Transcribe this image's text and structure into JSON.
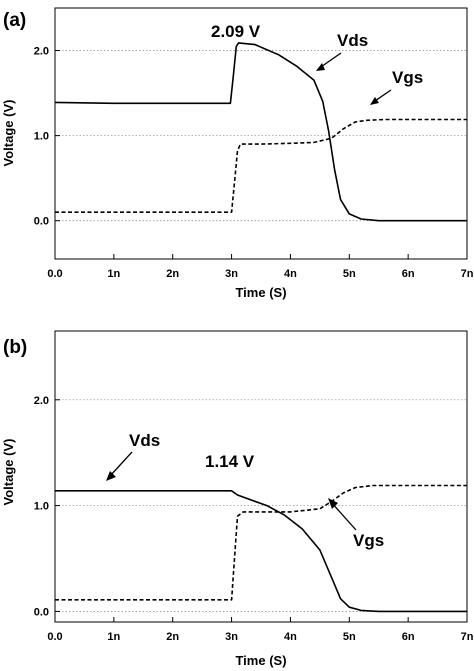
{
  "chart_data": [
    {
      "panel_label": "(a)",
      "type": "line",
      "xlabel": "Time (S)",
      "ylabel": "Voltage (V)",
      "xlim": [
        0,
        7
      ],
      "ylim": [
        -0.45,
        2.5
      ],
      "x_unit_suffix": "n",
      "x_ticks": [
        {
          "value": 0,
          "label": "0.0"
        },
        {
          "value": 1,
          "label": "1n"
        },
        {
          "value": 2,
          "label": "2n"
        },
        {
          "value": 3,
          "label": "3n"
        },
        {
          "value": 4,
          "label": "4n"
        },
        {
          "value": 5,
          "label": "5n"
        },
        {
          "value": 6,
          "label": "6n"
        },
        {
          "value": 7,
          "label": "7n"
        }
      ],
      "y_ticks": [
        {
          "value": 0,
          "label": "0.0"
        },
        {
          "value": 1,
          "label": "1.0"
        },
        {
          "value": 2,
          "label": "2.0"
        }
      ],
      "grid": "horizontal-dotted",
      "series": [
        {
          "name": "Vds",
          "style": "solid",
          "x": [
            0,
            1,
            2,
            2.98,
            3.03,
            3.08,
            3.12,
            3.4,
            3.8,
            4.1,
            4.4,
            4.55,
            4.65,
            4.75,
            4.85,
            5.0,
            5.2,
            5.5,
            6,
            7
          ],
          "y": [
            1.39,
            1.38,
            1.38,
            1.38,
            1.7,
            2.05,
            2.09,
            2.07,
            1.95,
            1.82,
            1.65,
            1.4,
            1.05,
            0.6,
            0.25,
            0.08,
            0.02,
            0.0,
            0.0,
            0.0
          ]
        },
        {
          "name": "Vgs",
          "style": "dashed",
          "x": [
            0,
            1,
            2,
            3.0,
            3.05,
            3.1,
            3.15,
            3.5,
            4,
            4.4,
            4.7,
            4.9,
            5.1,
            5.3,
            5.6,
            6,
            7
          ],
          "y": [
            0.1,
            0.1,
            0.1,
            0.1,
            0.45,
            0.82,
            0.9,
            0.9,
            0.91,
            0.92,
            0.97,
            1.08,
            1.16,
            1.18,
            1.19,
            1.19,
            1.19
          ]
        }
      ],
      "annotations": [
        {
          "text": "2.09 V",
          "x": 3.12,
          "y": 2.09,
          "arrow": false
        },
        {
          "text": "Vds",
          "x": 4.4,
          "y": 1.65,
          "arrow": true
        },
        {
          "text": "Vgs",
          "x": 4.95,
          "y": 1.2,
          "arrow": true
        }
      ]
    },
    {
      "panel_label": "(b)",
      "type": "line",
      "xlabel": "Time (S)",
      "ylabel": "Voltage (V)",
      "xlim": [
        0,
        7
      ],
      "ylim": [
        -0.1,
        2.65
      ],
      "x_unit_suffix": "n",
      "x_ticks": [
        {
          "value": 0,
          "label": "0.0"
        },
        {
          "value": 1,
          "label": "1n"
        },
        {
          "value": 2,
          "label": "2n"
        },
        {
          "value": 3,
          "label": "3n"
        },
        {
          "value": 4,
          "label": "4n"
        },
        {
          "value": 5,
          "label": "5n"
        },
        {
          "value": 6,
          "label": "6n"
        },
        {
          "value": 7,
          "label": "7n"
        }
      ],
      "y_ticks": [
        {
          "value": 0,
          "label": "0.0"
        },
        {
          "value": 1,
          "label": "1.0"
        },
        {
          "value": 2,
          "label": "2.0"
        }
      ],
      "grid": "horizontal-dotted",
      "series": [
        {
          "name": "Vds",
          "style": "solid",
          "x": [
            0,
            1,
            2,
            3.0,
            3.1,
            3.3,
            3.6,
            3.9,
            4.2,
            4.5,
            4.7,
            4.85,
            5.0,
            5.2,
            5.5,
            6,
            7
          ],
          "y": [
            1.14,
            1.14,
            1.14,
            1.14,
            1.1,
            1.06,
            1.0,
            0.91,
            0.78,
            0.58,
            0.32,
            0.12,
            0.04,
            0.01,
            0.0,
            0.0,
            0.0
          ]
        },
        {
          "name": "Vgs",
          "style": "dashed",
          "x": [
            0,
            1,
            2,
            3.0,
            3.05,
            3.1,
            3.2,
            3.5,
            4,
            4.5,
            4.7,
            4.9,
            5.1,
            5.4,
            6,
            7
          ],
          "y": [
            0.11,
            0.11,
            0.11,
            0.11,
            0.5,
            0.9,
            0.94,
            0.94,
            0.94,
            0.97,
            1.04,
            1.12,
            1.17,
            1.19,
            1.19,
            1.19
          ]
        }
      ],
      "annotations": [
        {
          "text": "1.14 V",
          "x": 3.6,
          "y": 1.14,
          "arrow": false
        },
        {
          "text": "Vds",
          "x": 0.75,
          "y": 1.14,
          "arrow": true
        },
        {
          "text": "Vgs",
          "x": 4.6,
          "y": 0.98,
          "arrow": true
        }
      ]
    }
  ]
}
